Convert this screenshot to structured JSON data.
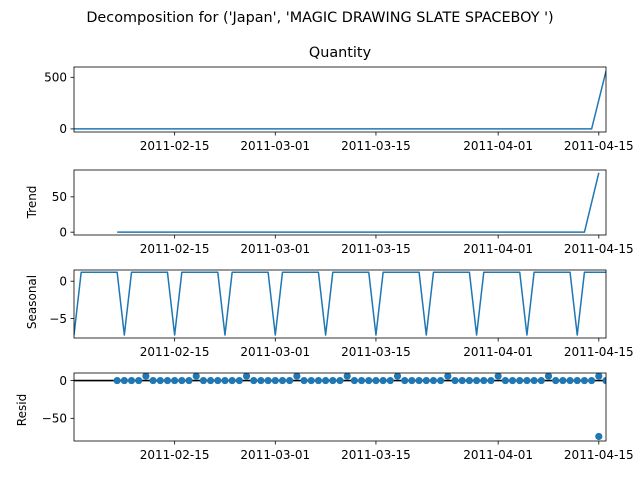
{
  "figure": {
    "suptitle": "Decomposition for ('Japan', 'MAGIC DRAWING SLATE SPACEBOY ')"
  },
  "chart_data": [
    {
      "type": "line",
      "title": "Quantity",
      "ylabel": "",
      "x_domain": [
        "2011-02-01",
        "2011-04-16"
      ],
      "ylim": [
        -30,
        600
      ],
      "yticks": [
        0,
        500
      ],
      "xticks": [
        "2011-02-15",
        "2011-03-01",
        "2011-03-15",
        "2011-04-01",
        "2011-04-15"
      ],
      "color": "#1f77b4",
      "series": [
        {
          "points": [
            [
              "2011-02-01",
              0
            ],
            [
              "2011-04-14",
              0
            ],
            [
              "2011-04-16",
              560
            ]
          ]
        }
      ]
    },
    {
      "type": "line",
      "title": "",
      "ylabel": "Trend",
      "x_domain": [
        "2011-02-01",
        "2011-04-16"
      ],
      "ylim": [
        -4,
        88
      ],
      "yticks": [
        0,
        50
      ],
      "xticks": [
        "2011-02-15",
        "2011-03-01",
        "2011-03-15",
        "2011-04-01",
        "2011-04-15"
      ],
      "color": "#1f77b4",
      "series": [
        {
          "points": [
            [
              "2011-02-07",
              0
            ],
            [
              "2011-04-13",
              0
            ],
            [
              "2011-04-15",
              84
            ]
          ]
        }
      ]
    },
    {
      "type": "line",
      "title": "",
      "ylabel": "Seasonal",
      "x_domain": [
        "2011-02-01",
        "2011-04-16"
      ],
      "ylim": [
        -7.6,
        1.5
      ],
      "yticks": [
        -5,
        0
      ],
      "xticks": [
        "2011-02-15",
        "2011-03-01",
        "2011-03-15",
        "2011-04-01",
        "2011-04-15"
      ],
      "color": "#1f77b4",
      "cycle": {
        "start": "2011-02-01",
        "period_days": 7,
        "pattern": [
          -7.2,
          1.2,
          1.2,
          1.2,
          1.2,
          1.2,
          1.2
        ]
      }
    },
    {
      "type": "scatter",
      "title": "",
      "ylabel": "Resid",
      "x_domain": [
        "2011-02-01",
        "2011-04-16"
      ],
      "ylim": [
        -80,
        10
      ],
      "yticks": [
        -50,
        0
      ],
      "xticks": [
        "2011-02-15",
        "2011-03-01",
        "2011-03-15",
        "2011-04-01",
        "2011-04-15"
      ],
      "color": "#1f77b4",
      "zero_line": true,
      "points": {
        "start": "2011-02-07",
        "values": [
          0,
          0,
          0,
          0,
          6,
          0,
          0,
          0,
          0,
          0,
          0,
          6,
          0,
          0,
          0,
          0,
          0,
          0,
          6,
          0,
          0,
          0,
          0,
          0,
          0,
          6,
          0,
          0,
          0,
          0,
          0,
          0,
          6,
          0,
          0,
          0,
          0,
          0,
          0,
          6,
          0,
          0,
          0,
          0,
          0,
          0,
          6,
          0,
          0,
          0,
          0,
          0,
          0,
          6,
          0,
          0,
          0,
          0,
          0,
          0,
          6,
          0,
          0,
          0,
          0,
          0,
          0,
          6,
          0,
          0,
          0,
          0,
          0,
          0
        ],
        "extra": [
          [
            "2011-04-15",
            -74
          ]
        ]
      }
    }
  ]
}
